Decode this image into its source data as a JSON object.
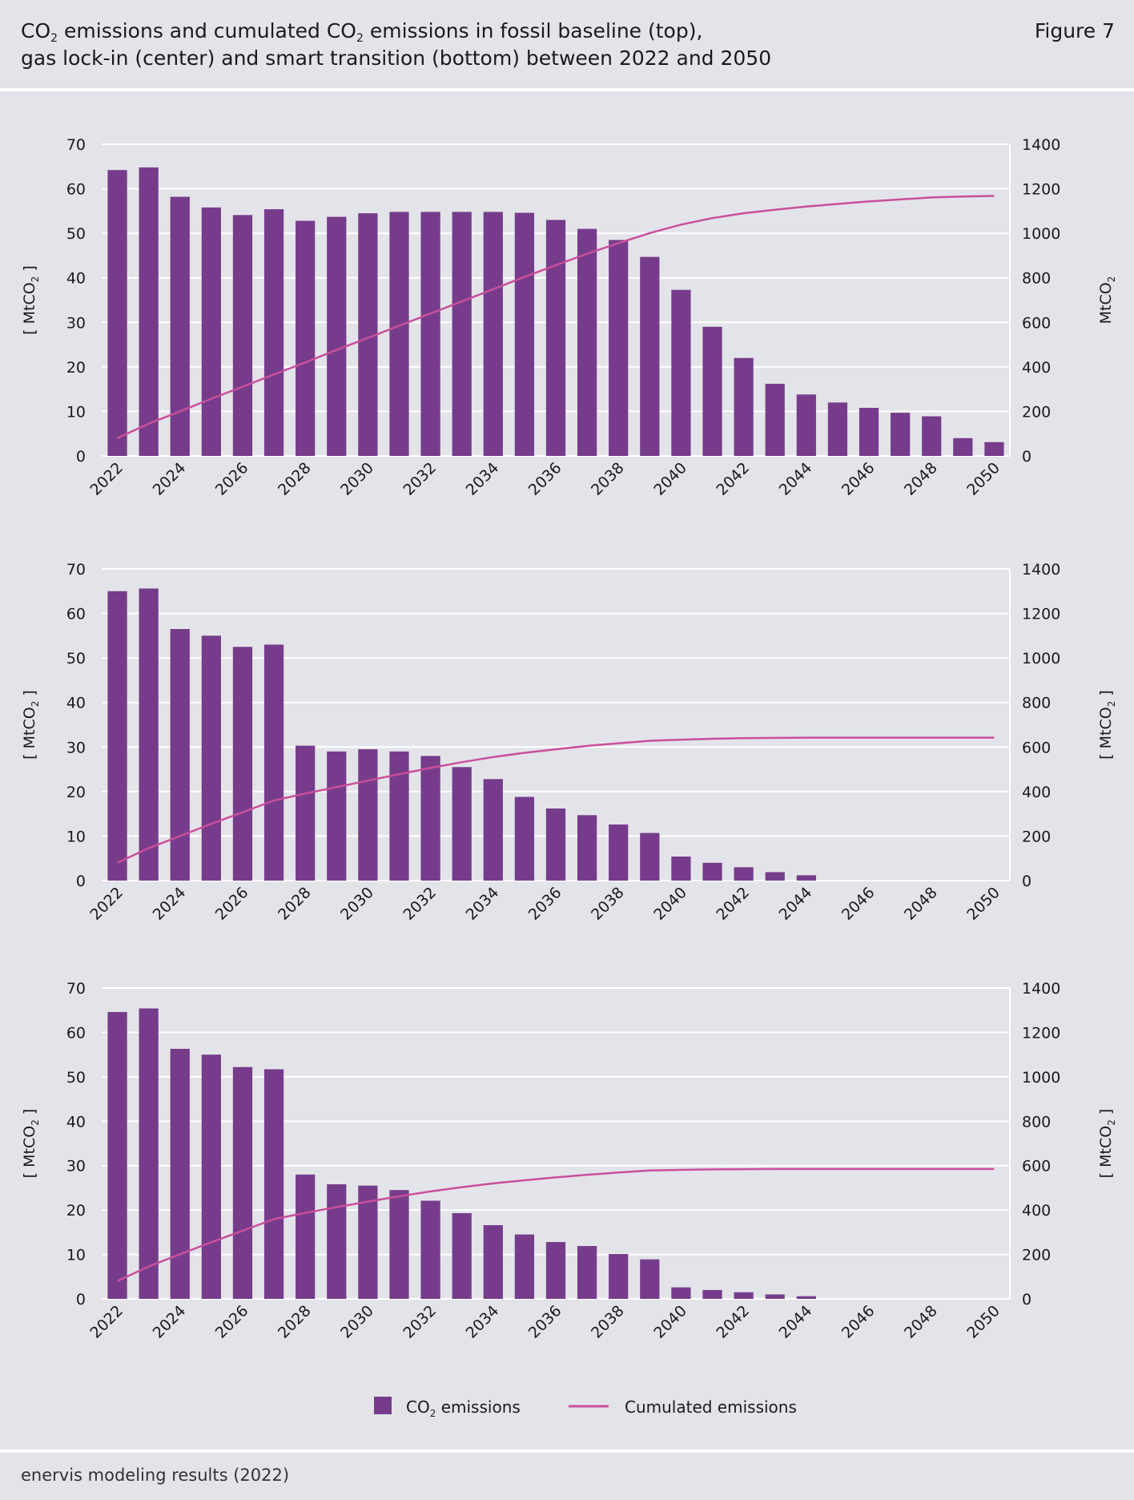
{
  "header": {
    "title_line1_a": "CO",
    "title_line1_sub": "2",
    "title_line1_b": " emissions and cumulated CO",
    "title_line1_sub2": "2",
    "title_line1_c": " emissions in fossil baseline (top),",
    "title_line2": "gas lock-in (center) and smart transition (bottom) between 2022 and 2050",
    "figure_label": "Figure 7"
  },
  "legend": {
    "bar_label_a": "CO",
    "bar_label_sub": "2",
    "bar_label_b": " emissions",
    "line_label": "Cumulated emissions"
  },
  "colors": {
    "bar": "#763c8b",
    "line": "#c94f9b",
    "grid": "#ffffff",
    "background": "#e3e4e9"
  },
  "footer": {
    "source": "enervis modeling results (2022)"
  },
  "chart_data": [
    {
      "type": "bar",
      "title": "",
      "x": [
        2022,
        2023,
        2024,
        2025,
        2026,
        2027,
        2028,
        2029,
        2030,
        2031,
        2032,
        2033,
        2034,
        2035,
        2036,
        2037,
        2038,
        2039,
        2040,
        2041,
        2042,
        2043,
        2044,
        2045,
        2046,
        2047,
        2048,
        2049,
        2050
      ],
      "x_tick_labels": [
        "2022",
        "2024",
        "2026",
        "2028",
        "2030",
        "2032",
        "2034",
        "2036",
        "2038",
        "2040",
        "2042",
        "2044",
        "2046",
        "2048",
        "2050"
      ],
      "ylabel_left": "[ MtCO2 ]",
      "ylabel_right": "MtCO2",
      "ylim_left": [
        0,
        70
      ],
      "ylim_right": [
        0,
        1400
      ],
      "yticks_left": [
        "0",
        "10",
        "20",
        "30",
        "40",
        "50",
        "60",
        "70"
      ],
      "yticks_right": [
        "0",
        "200",
        "400",
        "600",
        "800",
        "1000",
        "1200",
        "1400"
      ],
      "grid": true,
      "series": [
        {
          "name": "CO2 emissions",
          "type": "bar",
          "axis": "left",
          "values": [
            64.2,
            64.8,
            58.2,
            55.8,
            54.1,
            55.4,
            52.8,
            53.7,
            54.5,
            54.8,
            54.8,
            54.8,
            54.8,
            54.6,
            53.0,
            51.0,
            48.5,
            44.7,
            37.3,
            29.0,
            22.0,
            16.2,
            13.8,
            12.0,
            10.8,
            9.7,
            8.9,
            4.0,
            3.1
          ]
        },
        {
          "name": "Cumulated emissions",
          "type": "line",
          "axis": "right",
          "values": [
            80,
            145,
            200,
            257,
            311,
            366,
            420,
            476,
            530,
            585,
            640,
            694,
            749,
            804,
            857,
            908,
            956,
            1001,
            1039,
            1068,
            1090,
            1106,
            1120,
            1132,
            1143,
            1152,
            1161,
            1165,
            1168
          ]
        }
      ]
    },
    {
      "type": "bar",
      "title": "",
      "x": [
        2022,
        2023,
        2024,
        2025,
        2026,
        2027,
        2028,
        2029,
        2030,
        2031,
        2032,
        2033,
        2034,
        2035,
        2036,
        2037,
        2038,
        2039,
        2040,
        2041,
        2042,
        2043,
        2044,
        2045,
        2046,
        2047,
        2048,
        2049,
        2050
      ],
      "x_tick_labels": [
        "2022",
        "2024",
        "2026",
        "2028",
        "2030",
        "2032",
        "2034",
        "2036",
        "2038",
        "2040",
        "2042",
        "2044",
        "2046",
        "2048",
        "2050"
      ],
      "ylabel_left": "[ MtCO2 ]",
      "ylabel_right": "[ MtCO2 ]",
      "ylim_left": [
        0,
        70
      ],
      "ylim_right": [
        0,
        1400
      ],
      "yticks_left": [
        "0",
        "10",
        "20",
        "30",
        "40",
        "50",
        "60",
        "70"
      ],
      "yticks_right": [
        "0",
        "200",
        "400",
        "600",
        "800",
        "1000",
        "1200",
        "1400"
      ],
      "grid": true,
      "series": [
        {
          "name": "CO2 emissions",
          "type": "bar",
          "axis": "left",
          "values": [
            65.0,
            65.6,
            56.5,
            55.0,
            52.5,
            53.0,
            30.3,
            29.0,
            29.5,
            29.0,
            28.0,
            25.5,
            22.8,
            18.8,
            16.2,
            14.7,
            12.6,
            10.7,
            5.4,
            4.0,
            3.0,
            1.9,
            1.2,
            0,
            0,
            0,
            0,
            0,
            0
          ]
        },
        {
          "name": "Cumulated emissions",
          "type": "line",
          "axis": "right",
          "values": [
            80,
            146,
            200,
            255,
            307,
            360,
            391,
            420,
            449,
            478,
            506,
            532,
            555,
            574,
            590,
            605,
            617,
            628,
            633,
            637,
            640,
            641,
            642,
            642,
            642,
            642,
            642,
            642,
            642
          ]
        }
      ]
    },
    {
      "type": "bar",
      "title": "",
      "x": [
        2022,
        2023,
        2024,
        2025,
        2026,
        2027,
        2028,
        2029,
        2030,
        2031,
        2032,
        2033,
        2034,
        2035,
        2036,
        2037,
        2038,
        2039,
        2040,
        2041,
        2042,
        2043,
        2044,
        2045,
        2046,
        2047,
        2048,
        2049,
        2050
      ],
      "x_tick_labels": [
        "2022",
        "2024",
        "2026",
        "2028",
        "2030",
        "2032",
        "2034",
        "2036",
        "2038",
        "2040",
        "2042",
        "2044",
        "2046",
        "2048",
        "2050"
      ],
      "ylabel_left": "[ MtCO2 ]",
      "ylabel_right": "[ MtCO2 ]",
      "ylim_left": [
        0,
        70
      ],
      "ylim_right": [
        0,
        1400
      ],
      "yticks_left": [
        "0",
        "10",
        "20",
        "30",
        "40",
        "50",
        "60",
        "70"
      ],
      "yticks_right": [
        "0",
        "200",
        "400",
        "600",
        "800",
        "1000",
        "1200",
        "1400"
      ],
      "grid": true,
      "series": [
        {
          "name": "CO2 emissions",
          "type": "bar",
          "axis": "left",
          "values": [
            64.6,
            65.4,
            56.3,
            55.0,
            52.2,
            51.7,
            28.0,
            25.8,
            25.5,
            24.5,
            22.1,
            19.3,
            16.6,
            14.5,
            12.8,
            11.9,
            10.1,
            8.9,
            2.6,
            2.0,
            1.5,
            1.0,
            0.6,
            0,
            0,
            0,
            0,
            0,
            0
          ]
        },
        {
          "name": "Cumulated emissions",
          "type": "line",
          "axis": "right",
          "values": [
            80,
            146,
            201,
            255,
            307,
            359,
            387,
            413,
            438,
            462,
            484,
            503,
            520,
            534,
            547,
            559,
            569,
            578,
            581,
            583,
            584,
            585,
            585,
            585,
            585,
            585,
            585,
            585,
            585
          ]
        }
      ]
    }
  ]
}
